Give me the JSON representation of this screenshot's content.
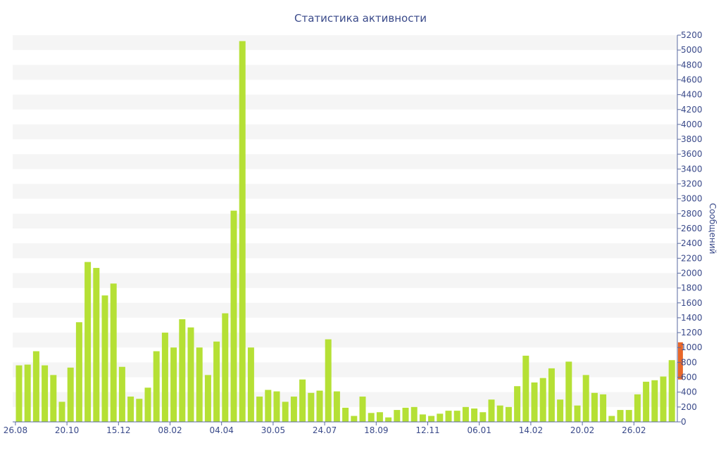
{
  "chart_data": {
    "type": "bar",
    "title": "Статистика активности",
    "ylabel": "Сообщений",
    "xlabel": "",
    "ylim": [
      0,
      5200
    ],
    "ytick_step": 200,
    "y_axis_side": "right",
    "grid": "horizontal alternating bands",
    "x_tick_labels": [
      {
        "label": "26.08",
        "index": 0
      },
      {
        "label": "20.10",
        "index": 6
      },
      {
        "label": "15.12",
        "index": 12
      },
      {
        "label": "08.02",
        "index": 18
      },
      {
        "label": "04.04",
        "index": 24
      },
      {
        "label": "30.05",
        "index": 30
      },
      {
        "label": "24.07",
        "index": 36
      },
      {
        "label": "18.09",
        "index": 42
      },
      {
        "label": "12.11",
        "index": 48
      },
      {
        "label": "06.01",
        "index": 54
      },
      {
        "label": "14.02",
        "index": 60
      },
      {
        "label": "20.02",
        "index": 66
      },
      {
        "label": "26.02",
        "index": 72
      }
    ],
    "series": [
      {
        "color": "#b5e035",
        "values": [
          760,
          770,
          950,
          760,
          630,
          270,
          730,
          1340,
          2150,
          2070,
          1700,
          1860,
          740,
          340,
          310,
          460,
          950,
          1200,
          1000,
          1380,
          1270,
          1000,
          630,
          1080,
          1460,
          2840,
          5120,
          1000,
          340,
          430,
          410,
          270,
          340,
          570,
          390,
          420,
          1110,
          410,
          190,
          80,
          340,
          120,
          130,
          60,
          160,
          190,
          200,
          100,
          80,
          110,
          150,
          150,
          200,
          180,
          130,
          300,
          220,
          200,
          480,
          890,
          530,
          590,
          720,
          300,
          810,
          220,
          630,
          390,
          370,
          80,
          160,
          160,
          370,
          540,
          560,
          610,
          830
        ]
      }
    ],
    "current_period": {
      "color": "#e8672a",
      "value_from": 570,
      "value_to": 1070
    }
  }
}
